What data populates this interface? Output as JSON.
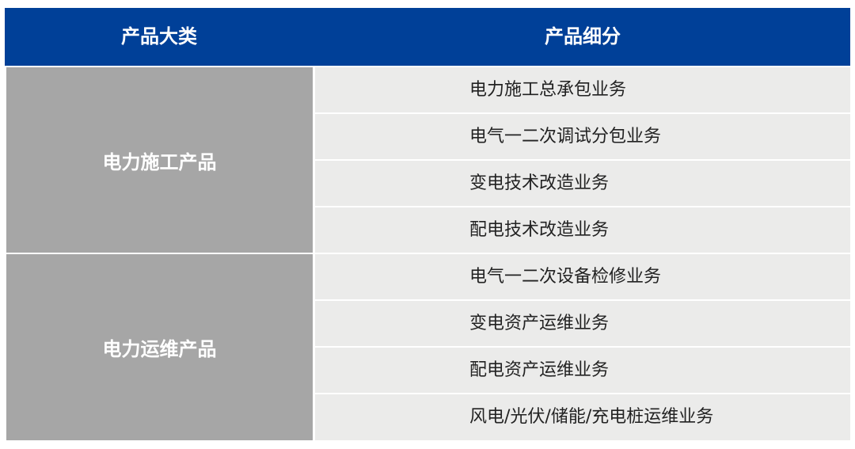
{
  "header": {
    "col1": "产品大类",
    "col2": "产品细分"
  },
  "colors": {
    "header_bg": "#004098",
    "category_bg": "#a6a6a6",
    "row_bg": "#ebebea"
  },
  "groups": [
    {
      "category": "电力施工产品",
      "items": [
        "电力施工总承包业务",
        "电气一二次调试分包业务",
        "变电技术改造业务",
        "配电技术改造业务"
      ]
    },
    {
      "category": "电力运维产品",
      "items": [
        "电气一二次设备检修业务",
        "变电资产运维业务",
        "配电资产运维业务",
        "风电/光伏/储能/充电桩运维业务"
      ]
    }
  ]
}
